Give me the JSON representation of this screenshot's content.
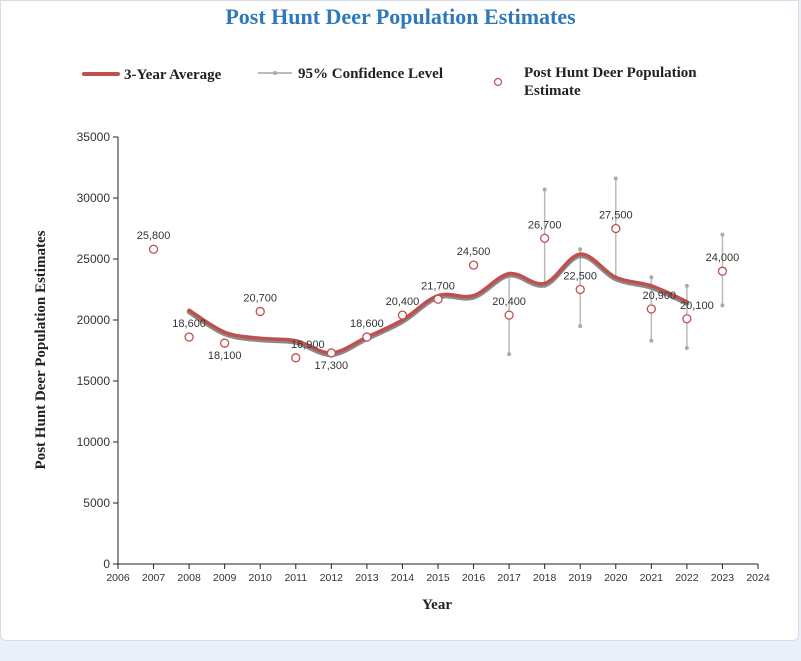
{
  "chart_data": {
    "type": "line",
    "title": "Post Hunt Deer Population Estimates",
    "xlabel": "Year",
    "ylabel": "Post Hunt Deer Population Estimates",
    "xlim": [
      2006,
      2024
    ],
    "ylim": [
      0,
      35000
    ],
    "x_ticks": [
      "2006",
      "2007",
      "2008",
      "2009",
      "2010",
      "2011",
      "2012",
      "2013",
      "2014",
      "2015",
      "2016",
      "2017",
      "2018",
      "2019",
      "2020",
      "2021",
      "2022",
      "2023",
      "2024"
    ],
    "y_ticks": [
      "0",
      "5000",
      "10000",
      "15000",
      "20000",
      "25000",
      "30000",
      "35000"
    ],
    "legend": {
      "placement": "top",
      "entries": [
        "3-Year Average",
        "95% Confidence Level",
        "Post Hunt Deer Population Estimate"
      ]
    },
    "grid": false,
    "series": [
      {
        "name": "3-Year Average",
        "type": "line",
        "color": "#c0504d",
        "x": [
          2008,
          2009,
          2010,
          2011,
          2012,
          2013,
          2014,
          2015,
          2016,
          2017,
          2018,
          2019,
          2020,
          2021,
          2022
        ],
        "values": [
          20800,
          19000,
          18500,
          18300,
          17300,
          18600,
          20000,
          22000,
          22000,
          23800,
          23000,
          25400,
          23500,
          22800,
          21500
        ]
      },
      {
        "name": "95% Confidence Level",
        "type": "errorbar",
        "color": "#bbbbbb",
        "x": [
          2017,
          2018,
          2019,
          2020,
          2021,
          2022,
          2023
        ],
        "low": [
          17200,
          22800,
          19500,
          23500,
          18300,
          17700,
          21200
        ],
        "high": [
          23800,
          30700,
          25800,
          31600,
          23500,
          22800,
          27000
        ]
      },
      {
        "name": "Post Hunt Deer Population Estimate",
        "type": "scatter",
        "color": "#c0504d",
        "x": [
          2007,
          2008,
          2009,
          2010,
          2011,
          2012,
          2013,
          2014,
          2015,
          2016,
          2017,
          2018,
          2019,
          2020,
          2021,
          2022,
          2023
        ],
        "values": [
          25800,
          18600,
          18100,
          20700,
          16900,
          17300,
          18600,
          20400,
          21700,
          24500,
          20400,
          26700,
          22500,
          27500,
          20900,
          20100,
          24000
        ],
        "labels": [
          "25,800",
          "18,600",
          "18,100",
          "20,700",
          "16,900",
          "17,300",
          "18,600",
          "20,400",
          "21,700",
          "24,500",
          "20,400",
          "26,700",
          "22,500",
          "27,500",
          "20,900",
          "20,100",
          "24,000"
        ]
      }
    ]
  }
}
